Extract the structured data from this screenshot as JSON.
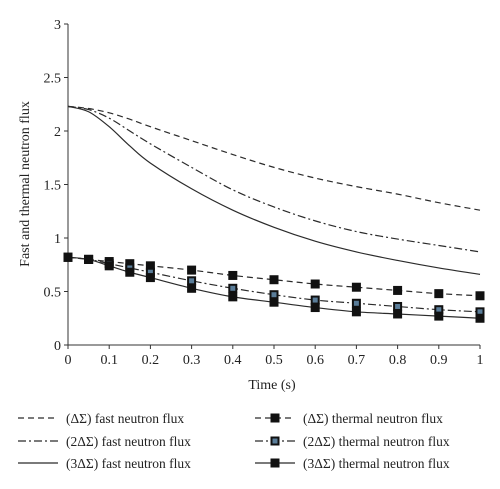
{
  "chart_data": {
    "type": "line",
    "xlabel": "Time (s)",
    "ylabel": "Fast and thermal neutron flux",
    "xlim": [
      0,
      1
    ],
    "ylim": [
      0,
      3
    ],
    "x_ticks": [
      "0",
      "0.1",
      "0.2",
      "0.3",
      "0.4",
      "0.5",
      "0.6",
      "0.7",
      "0.8",
      "0.9",
      "1"
    ],
    "y_ticks": [
      "0",
      "0.5",
      "1",
      "1.5",
      "2",
      "2.5",
      "3"
    ],
    "grid": false,
    "legend_position": "bottom",
    "series": [
      {
        "name": "(ΔΣ) fast neutron flux",
        "style": "dashed",
        "x": [
          0,
          0.05,
          0.1,
          0.15,
          0.2,
          0.3,
          0.4,
          0.5,
          0.6,
          0.7,
          0.8,
          0.9,
          1.0
        ],
        "values": [
          2.23,
          2.21,
          2.17,
          2.11,
          2.04,
          1.91,
          1.78,
          1.66,
          1.56,
          1.48,
          1.41,
          1.33,
          1.26
        ]
      },
      {
        "name": "(2ΔΣ) fast neutron flux",
        "style": "dashdot",
        "x": [
          0,
          0.05,
          0.1,
          0.15,
          0.2,
          0.3,
          0.4,
          0.5,
          0.6,
          0.7,
          0.8,
          0.9,
          1.0
        ],
        "values": [
          2.23,
          2.2,
          2.12,
          2.0,
          1.88,
          1.66,
          1.45,
          1.29,
          1.16,
          1.06,
          0.99,
          0.93,
          0.87
        ]
      },
      {
        "name": "(3ΔΣ) fast neutron flux",
        "style": "solid",
        "x": [
          0,
          0.05,
          0.1,
          0.15,
          0.2,
          0.3,
          0.4,
          0.5,
          0.6,
          0.7,
          0.8,
          0.9,
          1.0
        ],
        "values": [
          2.23,
          2.18,
          2.04,
          1.86,
          1.7,
          1.46,
          1.26,
          1.1,
          0.97,
          0.87,
          0.79,
          0.72,
          0.66
        ]
      },
      {
        "name": "(ΔΣ) thermal neutron flux",
        "style": "dashed-marker",
        "x": [
          0,
          0.05,
          0.1,
          0.15,
          0.2,
          0.3,
          0.4,
          0.5,
          0.6,
          0.7,
          0.8,
          0.9,
          1.0
        ],
        "values": [
          0.82,
          0.8,
          0.78,
          0.76,
          0.74,
          0.7,
          0.65,
          0.61,
          0.57,
          0.54,
          0.51,
          0.48,
          0.46
        ]
      },
      {
        "name": "(2ΔΣ) thermal neutron flux",
        "style": "dashdot-marker",
        "x": [
          0,
          0.05,
          0.1,
          0.15,
          0.2,
          0.3,
          0.4,
          0.5,
          0.6,
          0.7,
          0.8,
          0.9,
          1.0
        ],
        "values": [
          0.82,
          0.8,
          0.76,
          0.72,
          0.68,
          0.6,
          0.53,
          0.47,
          0.42,
          0.39,
          0.36,
          0.33,
          0.31
        ]
      },
      {
        "name": "(3ΔΣ) thermal neutron flux",
        "style": "solid-marker",
        "x": [
          0,
          0.05,
          0.1,
          0.15,
          0.2,
          0.3,
          0.4,
          0.5,
          0.6,
          0.7,
          0.8,
          0.9,
          1.0
        ],
        "values": [
          0.82,
          0.8,
          0.74,
          0.68,
          0.63,
          0.53,
          0.45,
          0.4,
          0.35,
          0.31,
          0.29,
          0.27,
          0.25
        ]
      }
    ],
    "colors": {
      "line": "#2b2b2b",
      "marker": "#111111",
      "marker_face_2": "#5a7d99"
    }
  }
}
